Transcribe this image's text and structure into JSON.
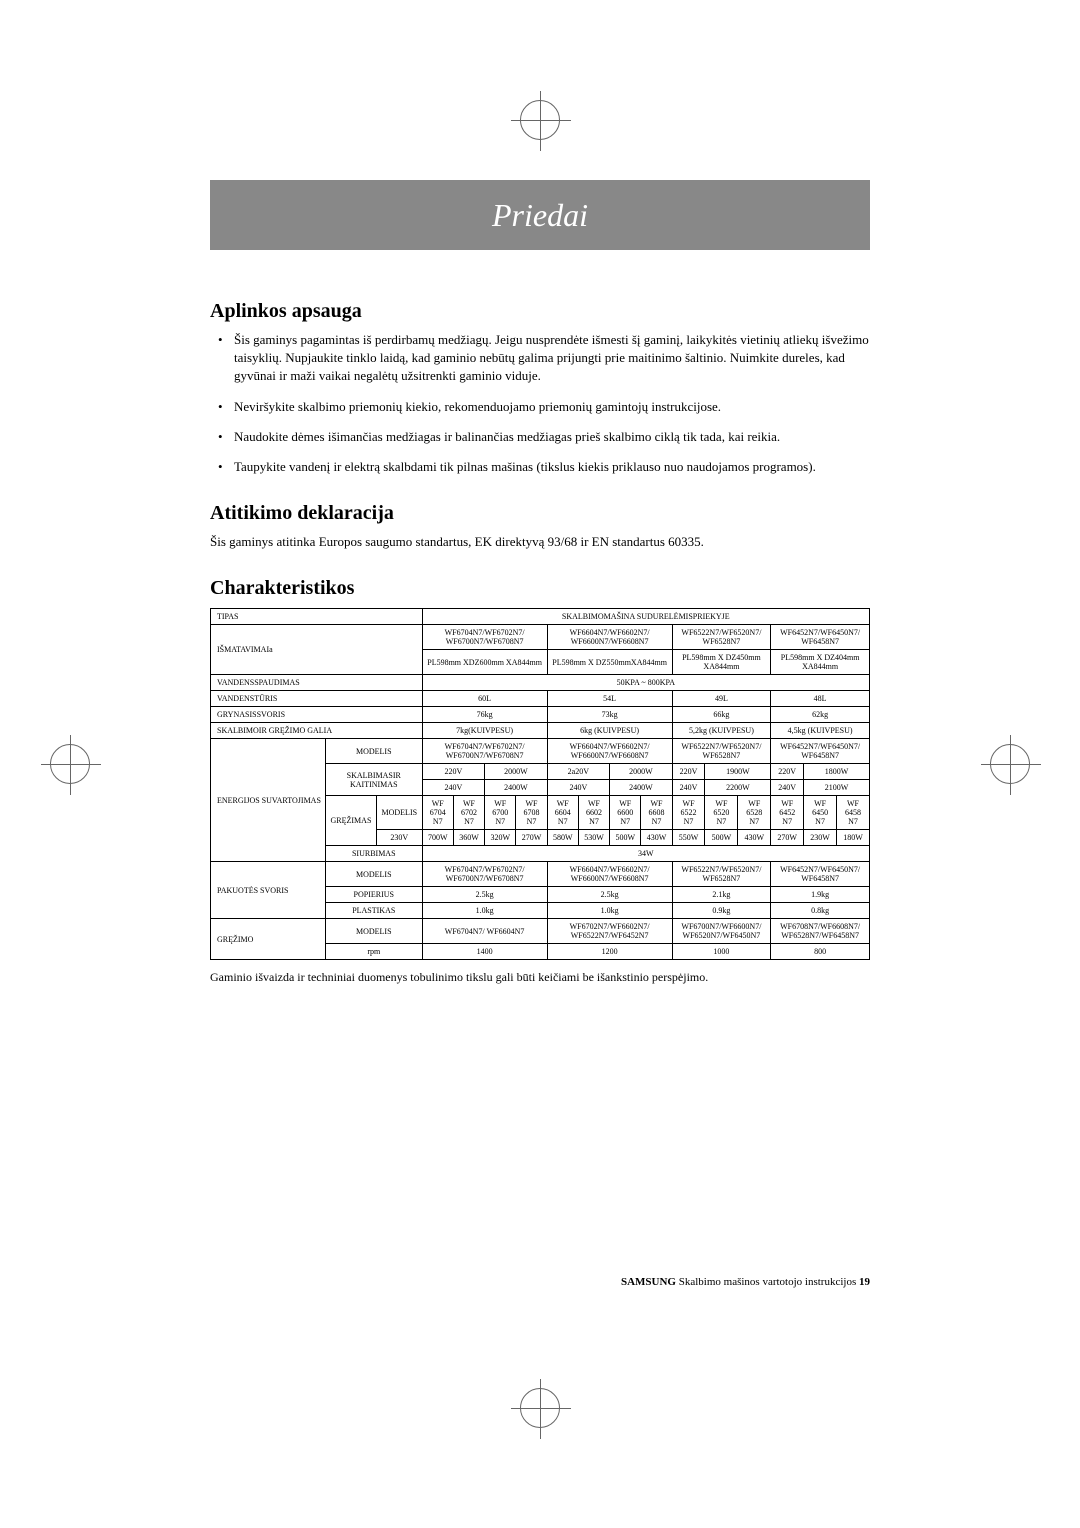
{
  "title": "Priedai",
  "sections": {
    "env": {
      "heading": "Aplinkos apsauga",
      "bullets": [
        "Šis gaminys pagamintas iš perdirbamų medžiagų. Jeigu nusprendėte išmesti šį gaminį, laikykitės vietinių atliekų išvežimo taisyklių. Nupjaukite tinklo laidą, kad gaminio nebūtų galima prijungti prie maitinimo šaltinio. Nuimkite dureles, kad gyvūnai ir maži vaikai negalėtų užsitrenkti gaminio viduje.",
        "Neviršykite skalbimo priemonių kiekio, rekomenduojamo priemonių gamintojų instrukcijose.",
        "Naudokite dėmes išimančias medžiagas ir balinančias medžiagas prieš skalbimo ciklą tik tada, kai reikia.",
        "Taupykite vandenį ir elektrą skalbdami tik pilnas mašinas (tikslus kiekis priklauso nuo naudojamos programos)."
      ]
    },
    "conf": {
      "heading": "Atitikimo deklaracija",
      "text": "Šis gaminys atitinka Europos saugumo standartus, EK direktyvą 93/68 ir EN standartus 60335."
    },
    "char": {
      "heading": "Charakteristikos",
      "footnote": "Gaminio išvaizda ir techniniai duomenys tobulinimo tikslu gali būti keičiami be išankstinio perspėjimo."
    }
  },
  "table": {
    "type": "TIPAS",
    "type_val": "SKALBIMOMAŠINA SUDURELĖMISPRIEKYJE",
    "dims_lbl": "IŠMATAVIMAIa",
    "models_a": "WF6704N7/WF6702N7/\nWF6700N7/WF6708N7",
    "models_b": "WF6604N7/WF6602N7/\nWF6600N7/WF6608N7",
    "models_c": "WF6522N7/WF6520N7/\nWF6528N7",
    "models_d": "WF6452N7/WF6450N7/\nWF6458N7",
    "dims_a": "PL598mm XDZ600mm XA844mm",
    "dims_b": "PL598mm X\nDZ550mmXA844mm",
    "dims_c": "PL598mm X\nDZ450mm XA844mm",
    "dims_d": "PL598mm X\nDZ404mm XA844mm",
    "pressure_lbl": "VANDENSSPAUDIMAS",
    "pressure_val": "50KPA ~ 800KPA",
    "volume_lbl": "VANDENSTŪRIS",
    "vol_a": "60L",
    "vol_b": "54L",
    "vol_c": "49L",
    "vol_d": "48L",
    "net_lbl": "GRYNASISSVORIS",
    "net_a": "76kg",
    "net_b": "73kg",
    "net_c": "66kg",
    "net_d": "62kg",
    "wash_lbl": "SKALBIMOIR\nGRĘŽIMO GALIA",
    "wash_a": "7kg(KUIVPESU)",
    "wash_b": "6kg\n(KUIVPESU)",
    "wash_c": "5,2kg\n(KUIVPESU)",
    "wash_d": "4,5kg\n(KUIVPESU)",
    "energy_lbl": "ENERGIJOS\nSUVARTOJIMAS",
    "modelis": "MODELIS",
    "heating": "SKALBIMASIR\nKAITINIMAS",
    "spin": "GRĘŽIMAS",
    "suction": "SIURBIMAS",
    "suction_val": "34W",
    "v220_a": "220V",
    "w2000_a": "2000W",
    "v220_b": "2a20V",
    "w2000_b": "2000W",
    "v220_c": "220V",
    "w1900": "1900W",
    "v220_d": "220V",
    "w1800": "1800W",
    "v240_a": "240V",
    "w2400": "2400W",
    "v240_b": "240V",
    "w2400_b": "2400W",
    "v240_c": "240V",
    "w2200": "2200W",
    "v240_d": "240V",
    "w2100": "2100W",
    "spin_v": "230V",
    "m1": "WF\n6704\nN7",
    "m2": "WF\n6702\nN7",
    "m3": "WF\n6700\nN7",
    "m4": "WF\n6708\nN7",
    "m5": "WF\n6604\nN7",
    "m6": "WF\n6602\nN7",
    "m7": "WF\n6600\nN7",
    "m8": "WF\n6608\nN7",
    "m9": "WF\n6522\nN7",
    "m10": "WF\n6520\nN7",
    "m11": "WF\n6528\nN7",
    "m12": "WF\n6452\nN7",
    "m13": "WF\n6450\nN7",
    "m14": "WF\n6458\nN7",
    "w1": "700W",
    "w2": "360W",
    "w3": "320W",
    "w4": "270W",
    "w5": "580W",
    "w6": "530W",
    "w7": "500W",
    "w8": "430W",
    "w9": "550W",
    "w10": "500W",
    "w11": "430W",
    "w12": "270W",
    "w13": "230W",
    "w14": "180W",
    "pack_lbl": "PAKUOTĖS\nSVORIS",
    "paper": "POPIERIUS",
    "plastic": "PLASTIKAS",
    "pp_a": "2.5kg",
    "pp_b": "2.5kg",
    "pp_c": "2.1kg",
    "pp_d": "1.9kg",
    "pl_a": "1.0kg",
    "pl_b": "1.0kg",
    "pl_c": "0.9kg",
    "pl_d": "0.8kg",
    "rpm_lbl": "GRĘŽIMO",
    "rpm": "rpm",
    "rpm_models_a": "WF6704N7/\nWF6604N7",
    "rpm_models_b": "WF6702N7/WF6602N7/\nWF6522N7/WF6452N7",
    "rpm_models_c": "WF6700N7/WF6600N7/\nWF6520N7/WF6450N7",
    "rpm_models_d": "WF6708N7/WF6608N7/\nWF6528N7/WF6458N7",
    "rpm_a": "1400",
    "rpm_b": "1200",
    "rpm_c": "1000",
    "rpm_d": "800"
  },
  "footer": {
    "brand": "SAMSUNG",
    "text": "Skalbimo mašinos vartotojo instrukcijos",
    "page": "19"
  }
}
